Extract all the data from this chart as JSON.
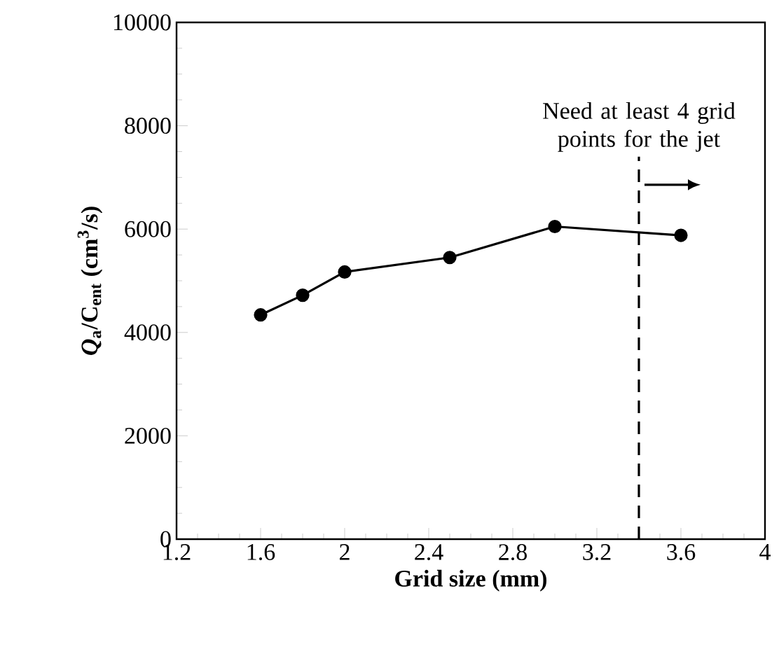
{
  "chart_data": {
    "type": "line",
    "xlabel": "Grid size (mm)",
    "ylabel": "*Q*$_{a}$/C$_{ent}$ (cm$^{3}$/s)",
    "x": [
      1.6,
      1.8,
      2.0,
      2.5,
      3.0,
      3.6
    ],
    "series": [
      {
        "color": "#000000",
        "values": [
          4340,
          4720,
          5170,
          5450,
          6050,
          5880
        ]
      }
    ],
    "marker": "circle",
    "line_style": "solid",
    "xlim": [
      1.2,
      4
    ],
    "xticks": [
      1.2,
      1.6,
      2,
      2.4,
      2.8,
      3.2,
      3.6,
      4
    ],
    "ylim": [
      0,
      10000
    ],
    "yticks": [
      0,
      2000,
      4000,
      6000,
      8000,
      10000
    ],
    "ref_lines": [
      {
        "axis": "x",
        "value": 3.4,
        "label": "Need at least 4 grid points for the jet",
        "color": "#000000",
        "line_style": "dashed"
      }
    ]
  }
}
